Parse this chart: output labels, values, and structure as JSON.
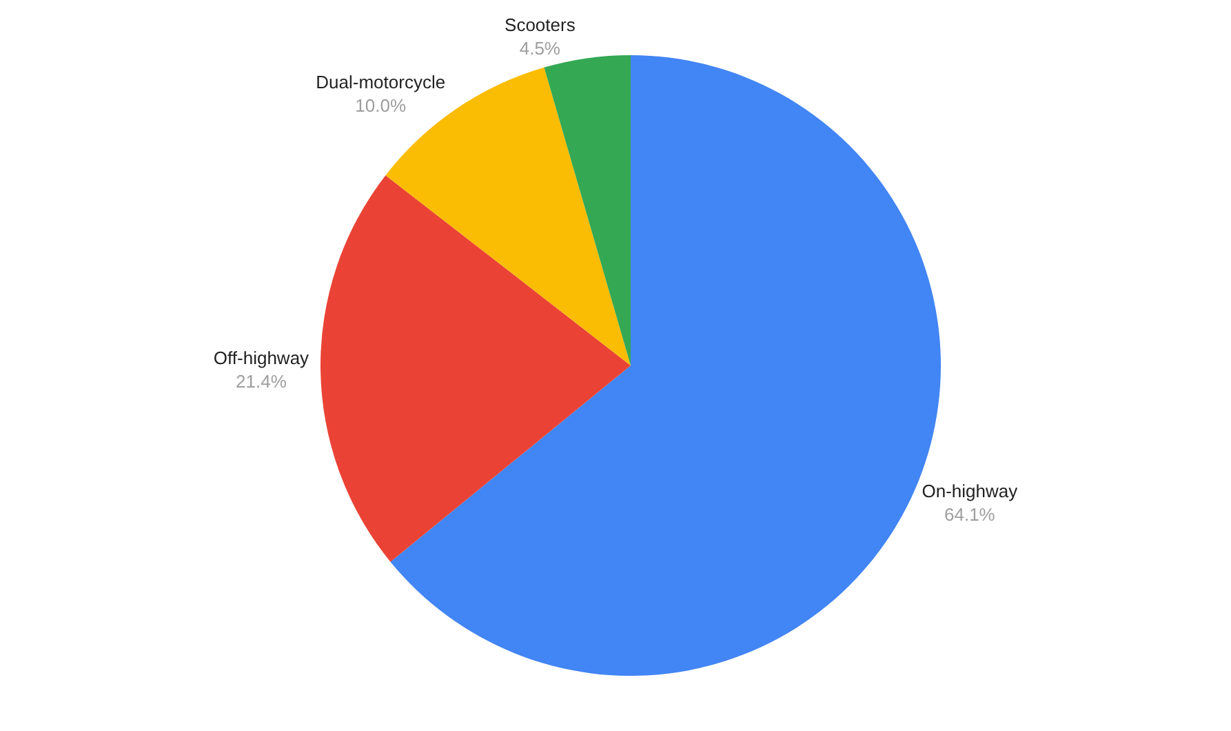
{
  "chart_data": {
    "type": "pie",
    "categories": [
      "On-highway",
      "Off-highway",
      "Dual-motorcycle",
      "Scooters"
    ],
    "values": [
      64.1,
      21.4,
      10.0,
      4.5
    ],
    "value_labels": [
      "64.1%",
      "21.4%",
      "10.0%",
      "4.5%"
    ],
    "colors": [
      "#4285f4",
      "#ea4335",
      "#fbbc04",
      "#34a853"
    ],
    "legend": false
  }
}
